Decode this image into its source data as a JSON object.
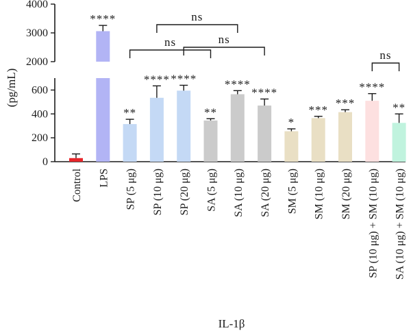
{
  "chart_data": {
    "type": "bar",
    "xlabel": "IL-1β",
    "ylabel": "(pg/mL)",
    "y_axis_break": {
      "lower_range": [
        0,
        700
      ],
      "upper_range": [
        2000,
        4000
      ]
    },
    "lower_ticks": [
      "0",
      "200",
      "400",
      "600"
    ],
    "upper_ticks": [
      "2000",
      "3000",
      "4000"
    ],
    "categories": [
      "Control",
      "LPS",
      "SP (5 μg)",
      "SP (10 μg)",
      "SP (20 μg)",
      "SA (5 μg)",
      "SA (10 μg)",
      "SA (20 μg)",
      "SM (5 μg)",
      "SM (10 μg)",
      "SM (20 μg)",
      "SP (10 μg) + SM (10 μg)",
      "SA (10 μg) + SM (10 μg)"
    ],
    "values": [
      30,
      3060,
      315,
      535,
      595,
      345,
      565,
      470,
      255,
      365,
      415,
      510,
      325
    ],
    "errors": [
      35,
      200,
      40,
      100,
      45,
      15,
      30,
      55,
      20,
      15,
      20,
      60,
      75
    ],
    "colors": [
      "#e8262b",
      "#b2b4f5",
      "#c4d9f5",
      "#c4d9f5",
      "#c4d9f5",
      "#cbcbcb",
      "#cbcbcb",
      "#cbcbcb",
      "#e9dfc4",
      "#e9dfc4",
      "#e9dfc4",
      "#fde0e0",
      "#c0f3de"
    ],
    "significance": [
      "",
      "****",
      "**",
      "****",
      "****",
      "**",
      "****",
      "****",
      "*",
      "***",
      "***",
      "****",
      "**"
    ],
    "comparisons": [
      {
        "from": 3,
        "to": 6,
        "label": "ns"
      },
      {
        "from": 2,
        "to": 5,
        "label": "ns"
      },
      {
        "from": 4,
        "to": 7,
        "label": "ns"
      },
      {
        "from": 11,
        "to": 12,
        "label": "ns"
      }
    ]
  }
}
